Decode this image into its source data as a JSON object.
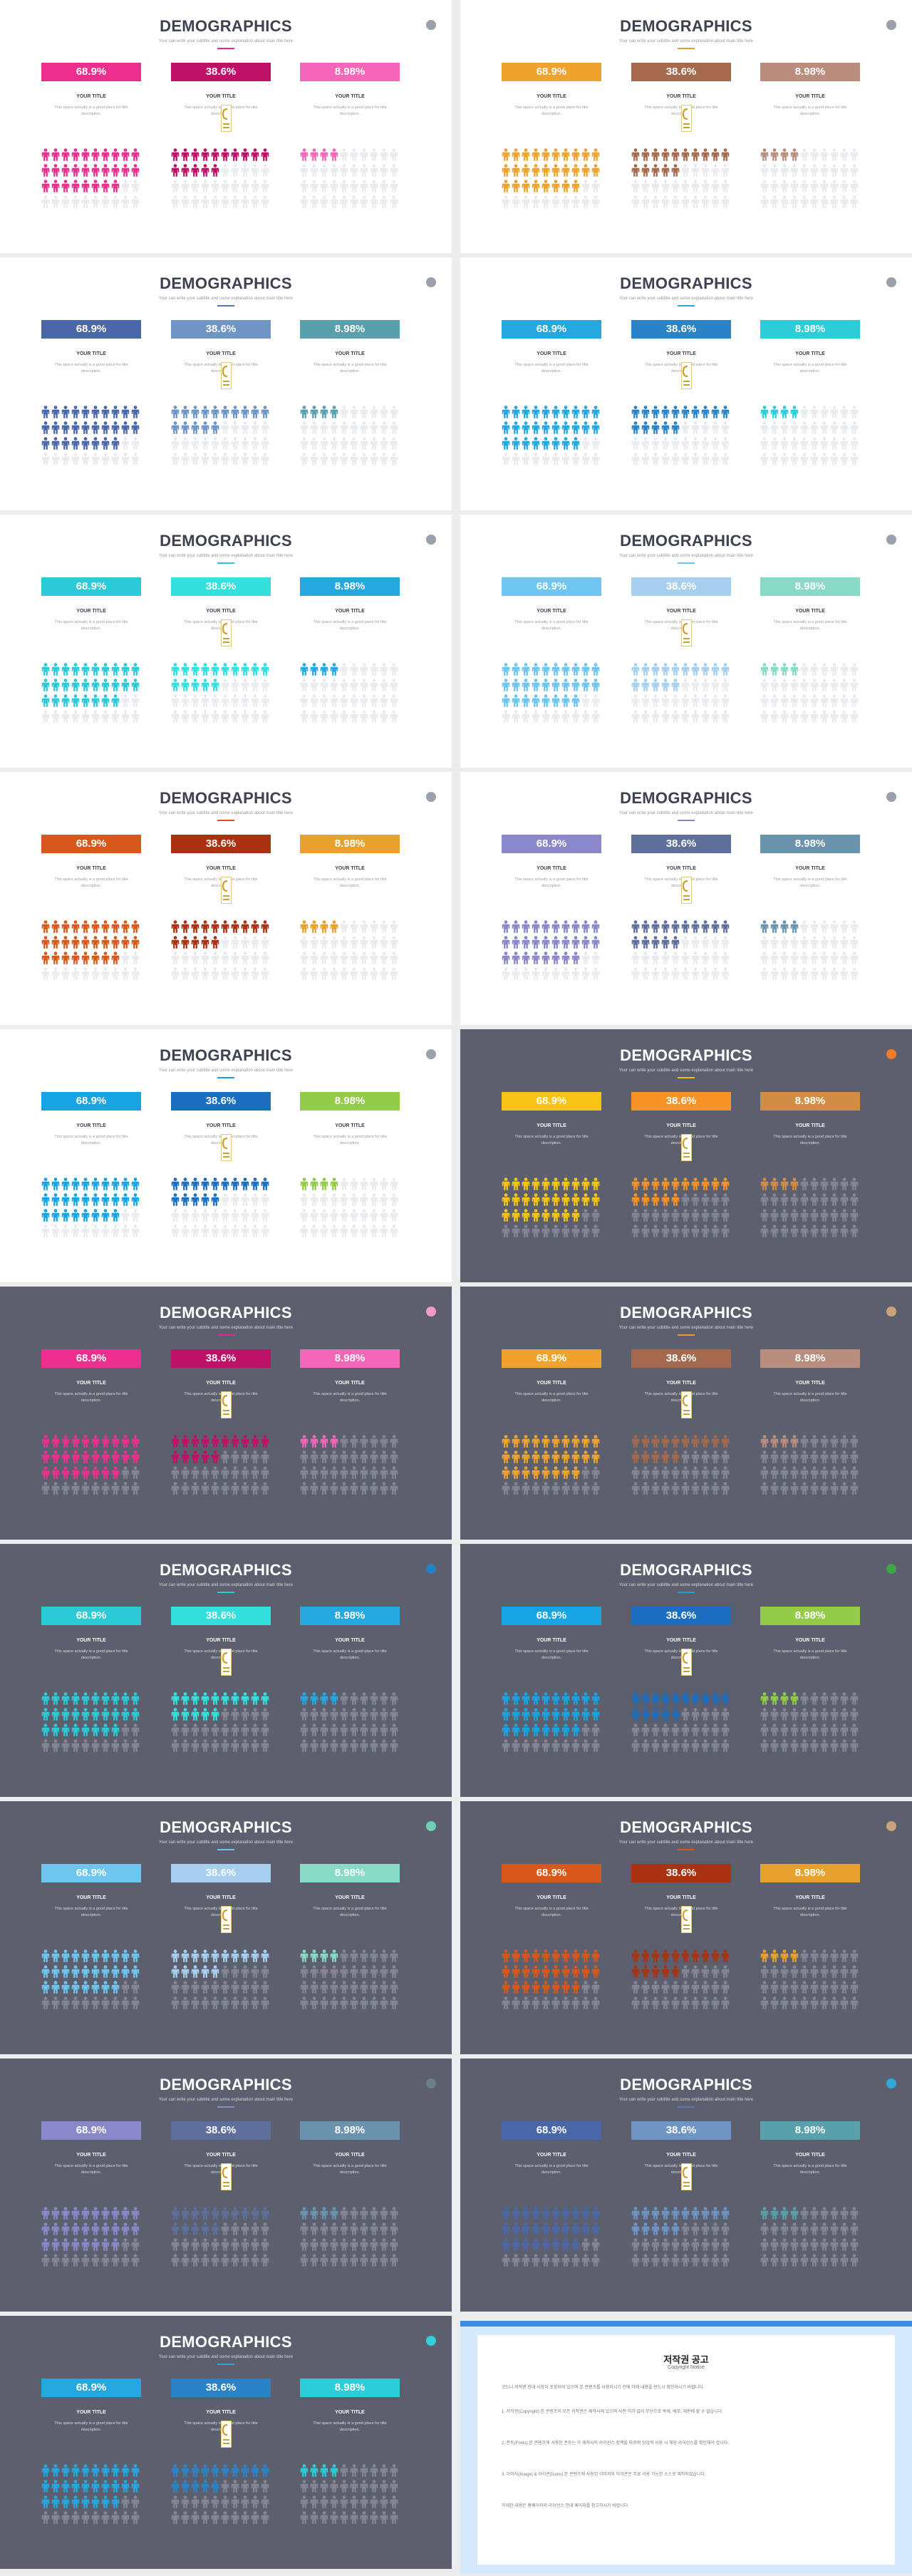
{
  "slide_title": "DEMOGRAPHICS",
  "slide_subtitle": "Your can write your subtitle and some explanation about main title here",
  "column_title": "YOUR TITLE",
  "column_desc": "This space actually is a good place for title description.",
  "stats": [
    "68.9%",
    "38.6%",
    "8.98%"
  ],
  "stat_values": [
    68.9,
    38.6,
    8.98
  ],
  "slides": [
    {
      "theme": "light",
      "accent": "#e8278b",
      "dot": "#9aa0ac",
      "colors": [
        "#ec2f8f",
        "#bf1068",
        "#f566b8"
      ]
    },
    {
      "theme": "light",
      "accent": "#e89d2c",
      "dot": "#9aa0ac",
      "colors": [
        "#eda32e",
        "#a56a4d",
        "#b98e7f"
      ]
    },
    {
      "theme": "light",
      "accent": "#5b74b4",
      "dot": "#9aa0ac",
      "colors": [
        "#4a67a8",
        "#6e95c4",
        "#58a0ab"
      ]
    },
    {
      "theme": "light",
      "accent": "#2aa6dd",
      "dot": "#9aa0ac",
      "colors": [
        "#25a7e0",
        "#2b83c7",
        "#2ccdd8"
      ]
    },
    {
      "theme": "light",
      "accent": "#2cc9d4",
      "dot": "#9aa0ac",
      "colors": [
        "#2bcad6",
        "#34e0dd",
        "#25a7e0"
      ]
    },
    {
      "theme": "light",
      "accent": "#6ec6ee",
      "dot": "#9aa0ac",
      "colors": [
        "#6ec6ee",
        "#a6d0ee",
        "#88d9c5"
      ]
    },
    {
      "theme": "light",
      "accent": "#d9541a",
      "dot": "#9aa0ac",
      "colors": [
        "#d8581b",
        "#a83212",
        "#e8a12f"
      ]
    },
    {
      "theme": "light",
      "accent": "#8a88c8",
      "dot": "#9aa0ac",
      "colors": [
        "#8a88c8",
        "#5e6f9c",
        "#6a93ad"
      ]
    },
    {
      "theme": "light",
      "accent": "#1f9ee0",
      "dot": "#9aa0ac",
      "colors": [
        "#18a4e3",
        "#1b6ec0",
        "#93cc49"
      ]
    },
    {
      "theme": "dark",
      "accent": "#f2b81c",
      "dot": "#f07d25",
      "colors": [
        "#f5c416",
        "#f79227",
        "#d08d43"
      ]
    },
    {
      "theme": "dark",
      "accent": "#e8278b",
      "dot": "#f49ac8",
      "colors": [
        "#ec2f8f",
        "#bf1068",
        "#f566b8"
      ]
    },
    {
      "theme": "dark",
      "accent": "#e89d2c",
      "dot": "#c9a47a",
      "colors": [
        "#eda32e",
        "#a56a4d",
        "#b98e7f"
      ]
    },
    {
      "theme": "dark",
      "accent": "#2cc9d4",
      "dot": "#2680c8",
      "colors": [
        "#2bcad6",
        "#34e0dd",
        "#25a7e0"
      ]
    },
    {
      "theme": "dark",
      "accent": "#1f9ee0",
      "dot": "#3fa54a",
      "colors": [
        "#18a4e3",
        "#1b6ec0",
        "#93cc49"
      ]
    },
    {
      "theme": "dark",
      "accent": "#6ec6ee",
      "dot": "#6dd0b4",
      "colors": [
        "#6ec6ee",
        "#a6d0ee",
        "#88d9c5"
      ]
    },
    {
      "theme": "dark",
      "accent": "#d9541a",
      "dot": "#c9a47a",
      "colors": [
        "#d8581b",
        "#a83212",
        "#e8a12f"
      ]
    },
    {
      "theme": "dark",
      "accent": "#8a88c8",
      "dot": "#6b7f86",
      "colors": [
        "#8a88c8",
        "#5e6f9c",
        "#6a93ad"
      ]
    },
    {
      "theme": "dark",
      "accent": "#5b74b4",
      "dot": "#30a8dc",
      "colors": [
        "#4a67a8",
        "#6e95c4",
        "#58a0ab"
      ]
    },
    {
      "theme": "dark",
      "accent": "#2aa6dd",
      "dot": "#31cfd9",
      "colors": [
        "#25a7e0",
        "#2b83c7",
        "#2ccdd8"
      ]
    }
  ],
  "copyright": {
    "title": "저작권 공고",
    "subtitle": "Copyright Notice",
    "paragraphs": [
      "코드나 저작권 안내 사항이 포함되어 있으며 본 콘텐츠를 사용하시기 전에 아래 내용을 반드시 확인하시기 바랍니다.",
      "1. 저작권(Copyright) 본 콘텐츠의 모든 저작권은 제작사에 있으며 사전 허가 없이 무단으로 복제, 배포, 재판매 할 수 없습니다.",
      "2. 폰트(Fonts) 본 콘텐츠에 사용된 폰트는 각 제작사의 라이선스 정책을 따르며 상업적 사용 시 해당 라이선스를 확인해야 합니다.",
      "3. 이미지(Image) & 아이콘(Icons) 본 콘텐츠에 사용된 이미지와 아이콘은 무료 사용 가능한 소스로 제작되었습니다.",
      "자세한 내용은 홈페이지의 라이선스 안내 페이지를 참고하시기 바랍니다."
    ]
  }
}
